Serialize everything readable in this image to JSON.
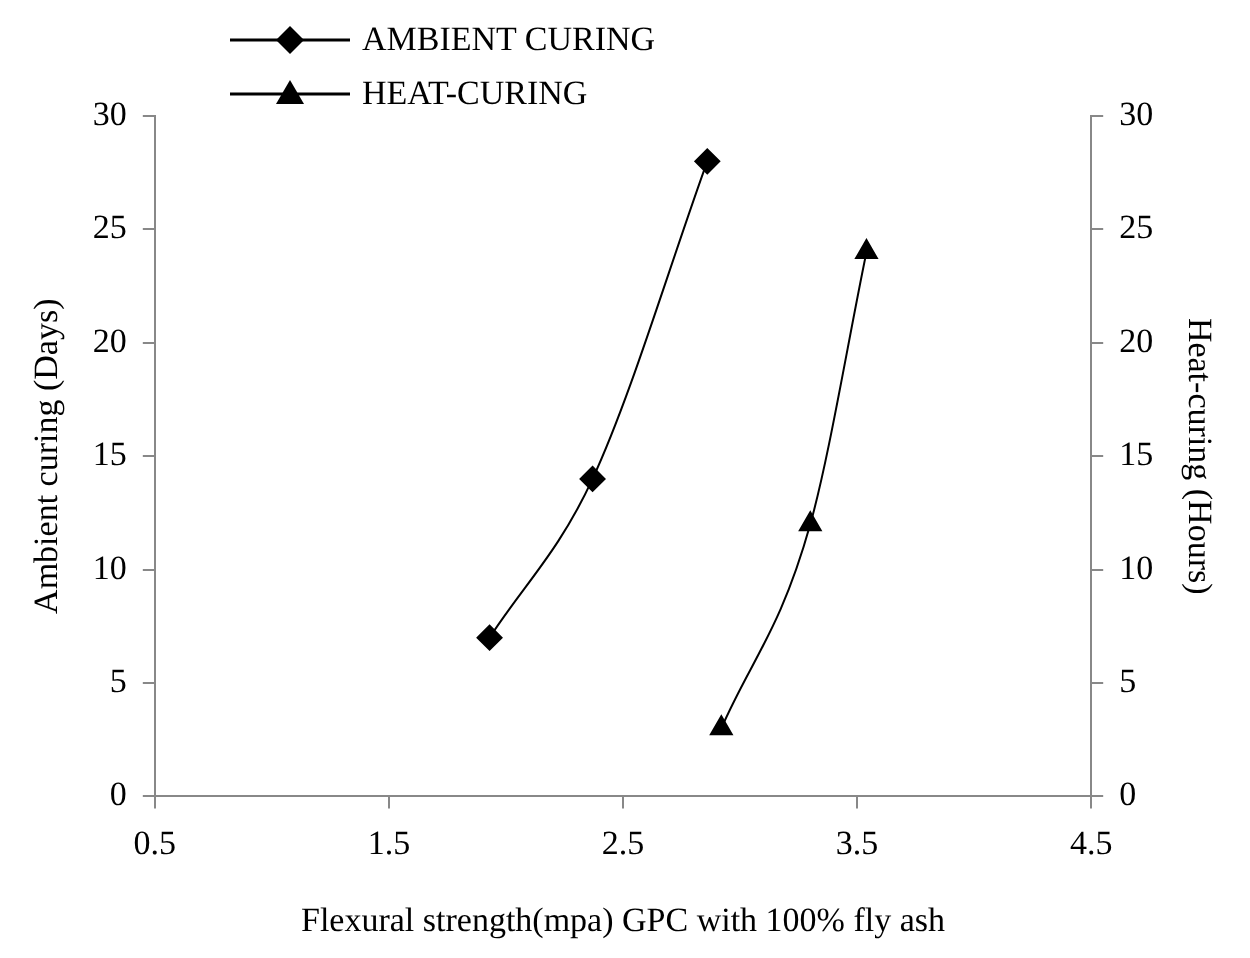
{
  "chart_data": {
    "type": "line",
    "xlabel": "Flexural strength(mpa) GPC with 100% fly ash",
    "ylabel": "Ambient curing (Days)",
    "y2label": "Heat-curing (Hours)",
    "xlim": [
      0.5,
      4.5
    ],
    "xticks": [
      0.5,
      1.5,
      2.5,
      3.5,
      4.5
    ],
    "ylim": [
      0,
      30
    ],
    "yticks": [
      0,
      5,
      10,
      15,
      20,
      25,
      30
    ],
    "y2lim": [
      0,
      30
    ],
    "y2ticks": [
      0,
      5,
      10,
      15,
      20,
      25,
      30
    ],
    "grid": false,
    "legend": "top left",
    "series": [
      {
        "name": "AMBIENT CURING",
        "color": "#000000",
        "marker": "diamond",
        "x": [
          1.93,
          2.37,
          2.86
        ],
        "values": [
          7,
          14,
          28
        ]
      },
      {
        "name": "HEAT-CURING",
        "color": "#000000",
        "marker": "triangle",
        "axis": "y2",
        "x": [
          2.92,
          3.3,
          3.54
        ],
        "values": [
          3,
          12,
          24
        ]
      }
    ]
  }
}
